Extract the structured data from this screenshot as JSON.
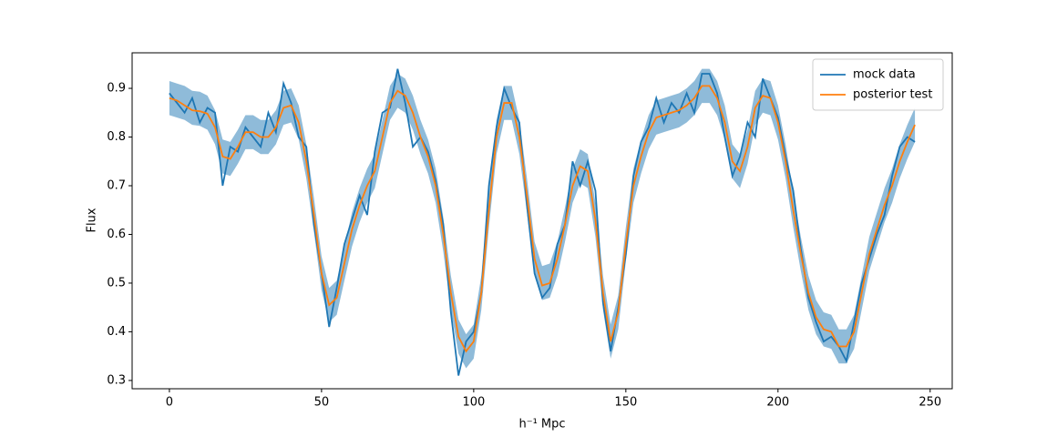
{
  "chart_data": {
    "type": "line",
    "xlabel": "h⁻¹ Mpc",
    "ylabel": "Flux",
    "xlim": [
      -12.25,
      257.25
    ],
    "ylim": [
      0.283,
      0.973
    ],
    "xticks": [
      0,
      50,
      100,
      150,
      200,
      250
    ],
    "yticks": [
      0.3,
      0.4,
      0.5,
      0.6,
      0.7,
      0.8,
      0.9
    ],
    "grid": false,
    "legend": "upper right",
    "x": [
      0,
      2.5,
      5,
      7.5,
      10,
      12.5,
      15,
      17.5,
      20,
      22.5,
      25,
      27.5,
      30,
      32.5,
      35,
      37.5,
      40,
      42.5,
      45,
      47.5,
      50,
      52.5,
      55,
      57.5,
      60,
      62.5,
      65,
      67.5,
      70,
      72.5,
      75,
      77.5,
      80,
      82.5,
      85,
      87.5,
      90,
      92.5,
      95,
      97.5,
      100,
      102.5,
      105,
      107.5,
      110,
      112.5,
      115,
      117.5,
      120,
      122.5,
      125,
      127.5,
      130,
      132.5,
      135,
      137.5,
      140,
      142.5,
      145,
      147.5,
      150,
      152.5,
      155,
      157.5,
      160,
      162.5,
      165,
      167.5,
      170,
      172.5,
      175,
      177.5,
      180,
      182.5,
      185,
      187.5,
      190,
      192.5,
      195,
      197.5,
      200,
      202.5,
      205,
      207.5,
      210,
      212.5,
      215,
      217.5,
      220,
      222.5,
      225,
      227.5,
      230,
      232.5,
      235,
      237.5,
      240,
      242.5,
      245
    ],
    "band": {
      "color": "#1f77b4",
      "upper": [
        0.915,
        0.91,
        0.905,
        0.895,
        0.893,
        0.885,
        0.855,
        0.795,
        0.79,
        0.815,
        0.845,
        0.845,
        0.835,
        0.835,
        0.855,
        0.895,
        0.9,
        0.865,
        0.785,
        0.675,
        0.555,
        0.49,
        0.505,
        0.575,
        0.645,
        0.695,
        0.735,
        0.765,
        0.835,
        0.905,
        0.93,
        0.92,
        0.885,
        0.835,
        0.795,
        0.735,
        0.635,
        0.515,
        0.425,
        0.395,
        0.415,
        0.515,
        0.685,
        0.835,
        0.905,
        0.905,
        0.835,
        0.715,
        0.585,
        0.535,
        0.54,
        0.585,
        0.655,
        0.735,
        0.775,
        0.765,
        0.665,
        0.515,
        0.415,
        0.475,
        0.615,
        0.735,
        0.795,
        0.845,
        0.875,
        0.88,
        0.885,
        0.89,
        0.9,
        0.915,
        0.94,
        0.94,
        0.915,
        0.865,
        0.785,
        0.765,
        0.815,
        0.895,
        0.92,
        0.915,
        0.865,
        0.785,
        0.685,
        0.595,
        0.515,
        0.465,
        0.44,
        0.435,
        0.405,
        0.405,
        0.435,
        0.515,
        0.595,
        0.645,
        0.695,
        0.735,
        0.785,
        0.825,
        0.86
      ],
      "lower": [
        0.845,
        0.84,
        0.835,
        0.825,
        0.823,
        0.815,
        0.785,
        0.725,
        0.72,
        0.745,
        0.775,
        0.775,
        0.765,
        0.765,
        0.785,
        0.825,
        0.83,
        0.795,
        0.715,
        0.605,
        0.485,
        0.42,
        0.435,
        0.505,
        0.575,
        0.625,
        0.665,
        0.695,
        0.765,
        0.835,
        0.86,
        0.85,
        0.815,
        0.765,
        0.725,
        0.665,
        0.565,
        0.445,
        0.355,
        0.325,
        0.345,
        0.445,
        0.615,
        0.765,
        0.835,
        0.835,
        0.765,
        0.645,
        0.515,
        0.465,
        0.47,
        0.515,
        0.585,
        0.665,
        0.705,
        0.695,
        0.595,
        0.445,
        0.345,
        0.405,
        0.545,
        0.665,
        0.725,
        0.775,
        0.805,
        0.81,
        0.815,
        0.82,
        0.83,
        0.845,
        0.87,
        0.87,
        0.845,
        0.795,
        0.715,
        0.695,
        0.745,
        0.825,
        0.85,
        0.845,
        0.795,
        0.715,
        0.615,
        0.525,
        0.445,
        0.395,
        0.37,
        0.365,
        0.335,
        0.335,
        0.365,
        0.445,
        0.525,
        0.575,
        0.625,
        0.665,
        0.715,
        0.755,
        0.79
      ]
    },
    "series": [
      {
        "name": "mock data",
        "color": "#1f77b4",
        "values": [
          0.89,
          0.87,
          0.85,
          0.88,
          0.83,
          0.86,
          0.85,
          0.7,
          0.78,
          0.77,
          0.82,
          0.8,
          0.78,
          0.85,
          0.81,
          0.91,
          0.87,
          0.8,
          0.78,
          0.62,
          0.52,
          0.41,
          0.49,
          0.58,
          0.63,
          0.68,
          0.64,
          0.77,
          0.85,
          0.86,
          0.94,
          0.87,
          0.78,
          0.8,
          0.77,
          0.71,
          0.62,
          0.44,
          0.31,
          0.38,
          0.4,
          0.48,
          0.7,
          0.82,
          0.9,
          0.86,
          0.83,
          0.66,
          0.52,
          0.47,
          0.49,
          0.58,
          0.62,
          0.75,
          0.7,
          0.75,
          0.69,
          0.46,
          0.36,
          0.45,
          0.56,
          0.72,
          0.79,
          0.82,
          0.88,
          0.83,
          0.87,
          0.85,
          0.89,
          0.85,
          0.93,
          0.93,
          0.89,
          0.8,
          0.72,
          0.76,
          0.83,
          0.8,
          0.92,
          0.88,
          0.84,
          0.76,
          0.69,
          0.57,
          0.47,
          0.42,
          0.38,
          0.39,
          0.37,
          0.34,
          0.42,
          0.5,
          0.55,
          0.6,
          0.64,
          0.72,
          0.78,
          0.8,
          0.79
        ]
      },
      {
        "name": "posterior test",
        "color": "#ff7f0e",
        "values": [
          0.88,
          0.875,
          0.865,
          0.855,
          0.853,
          0.848,
          0.82,
          0.76,
          0.755,
          0.78,
          0.81,
          0.81,
          0.8,
          0.8,
          0.82,
          0.86,
          0.865,
          0.83,
          0.75,
          0.64,
          0.52,
          0.455,
          0.47,
          0.54,
          0.61,
          0.66,
          0.7,
          0.73,
          0.8,
          0.87,
          0.895,
          0.885,
          0.85,
          0.8,
          0.76,
          0.7,
          0.6,
          0.48,
          0.39,
          0.36,
          0.38,
          0.48,
          0.65,
          0.8,
          0.87,
          0.87,
          0.8,
          0.68,
          0.55,
          0.495,
          0.5,
          0.55,
          0.62,
          0.7,
          0.74,
          0.73,
          0.63,
          0.48,
          0.38,
          0.44,
          0.58,
          0.7,
          0.76,
          0.81,
          0.84,
          0.845,
          0.85,
          0.855,
          0.865,
          0.88,
          0.905,
          0.905,
          0.88,
          0.83,
          0.75,
          0.73,
          0.78,
          0.86,
          0.885,
          0.88,
          0.83,
          0.75,
          0.65,
          0.56,
          0.48,
          0.43,
          0.405,
          0.4,
          0.37,
          0.37,
          0.4,
          0.48,
          0.56,
          0.61,
          0.66,
          0.7,
          0.75,
          0.79,
          0.825
        ]
      }
    ]
  }
}
